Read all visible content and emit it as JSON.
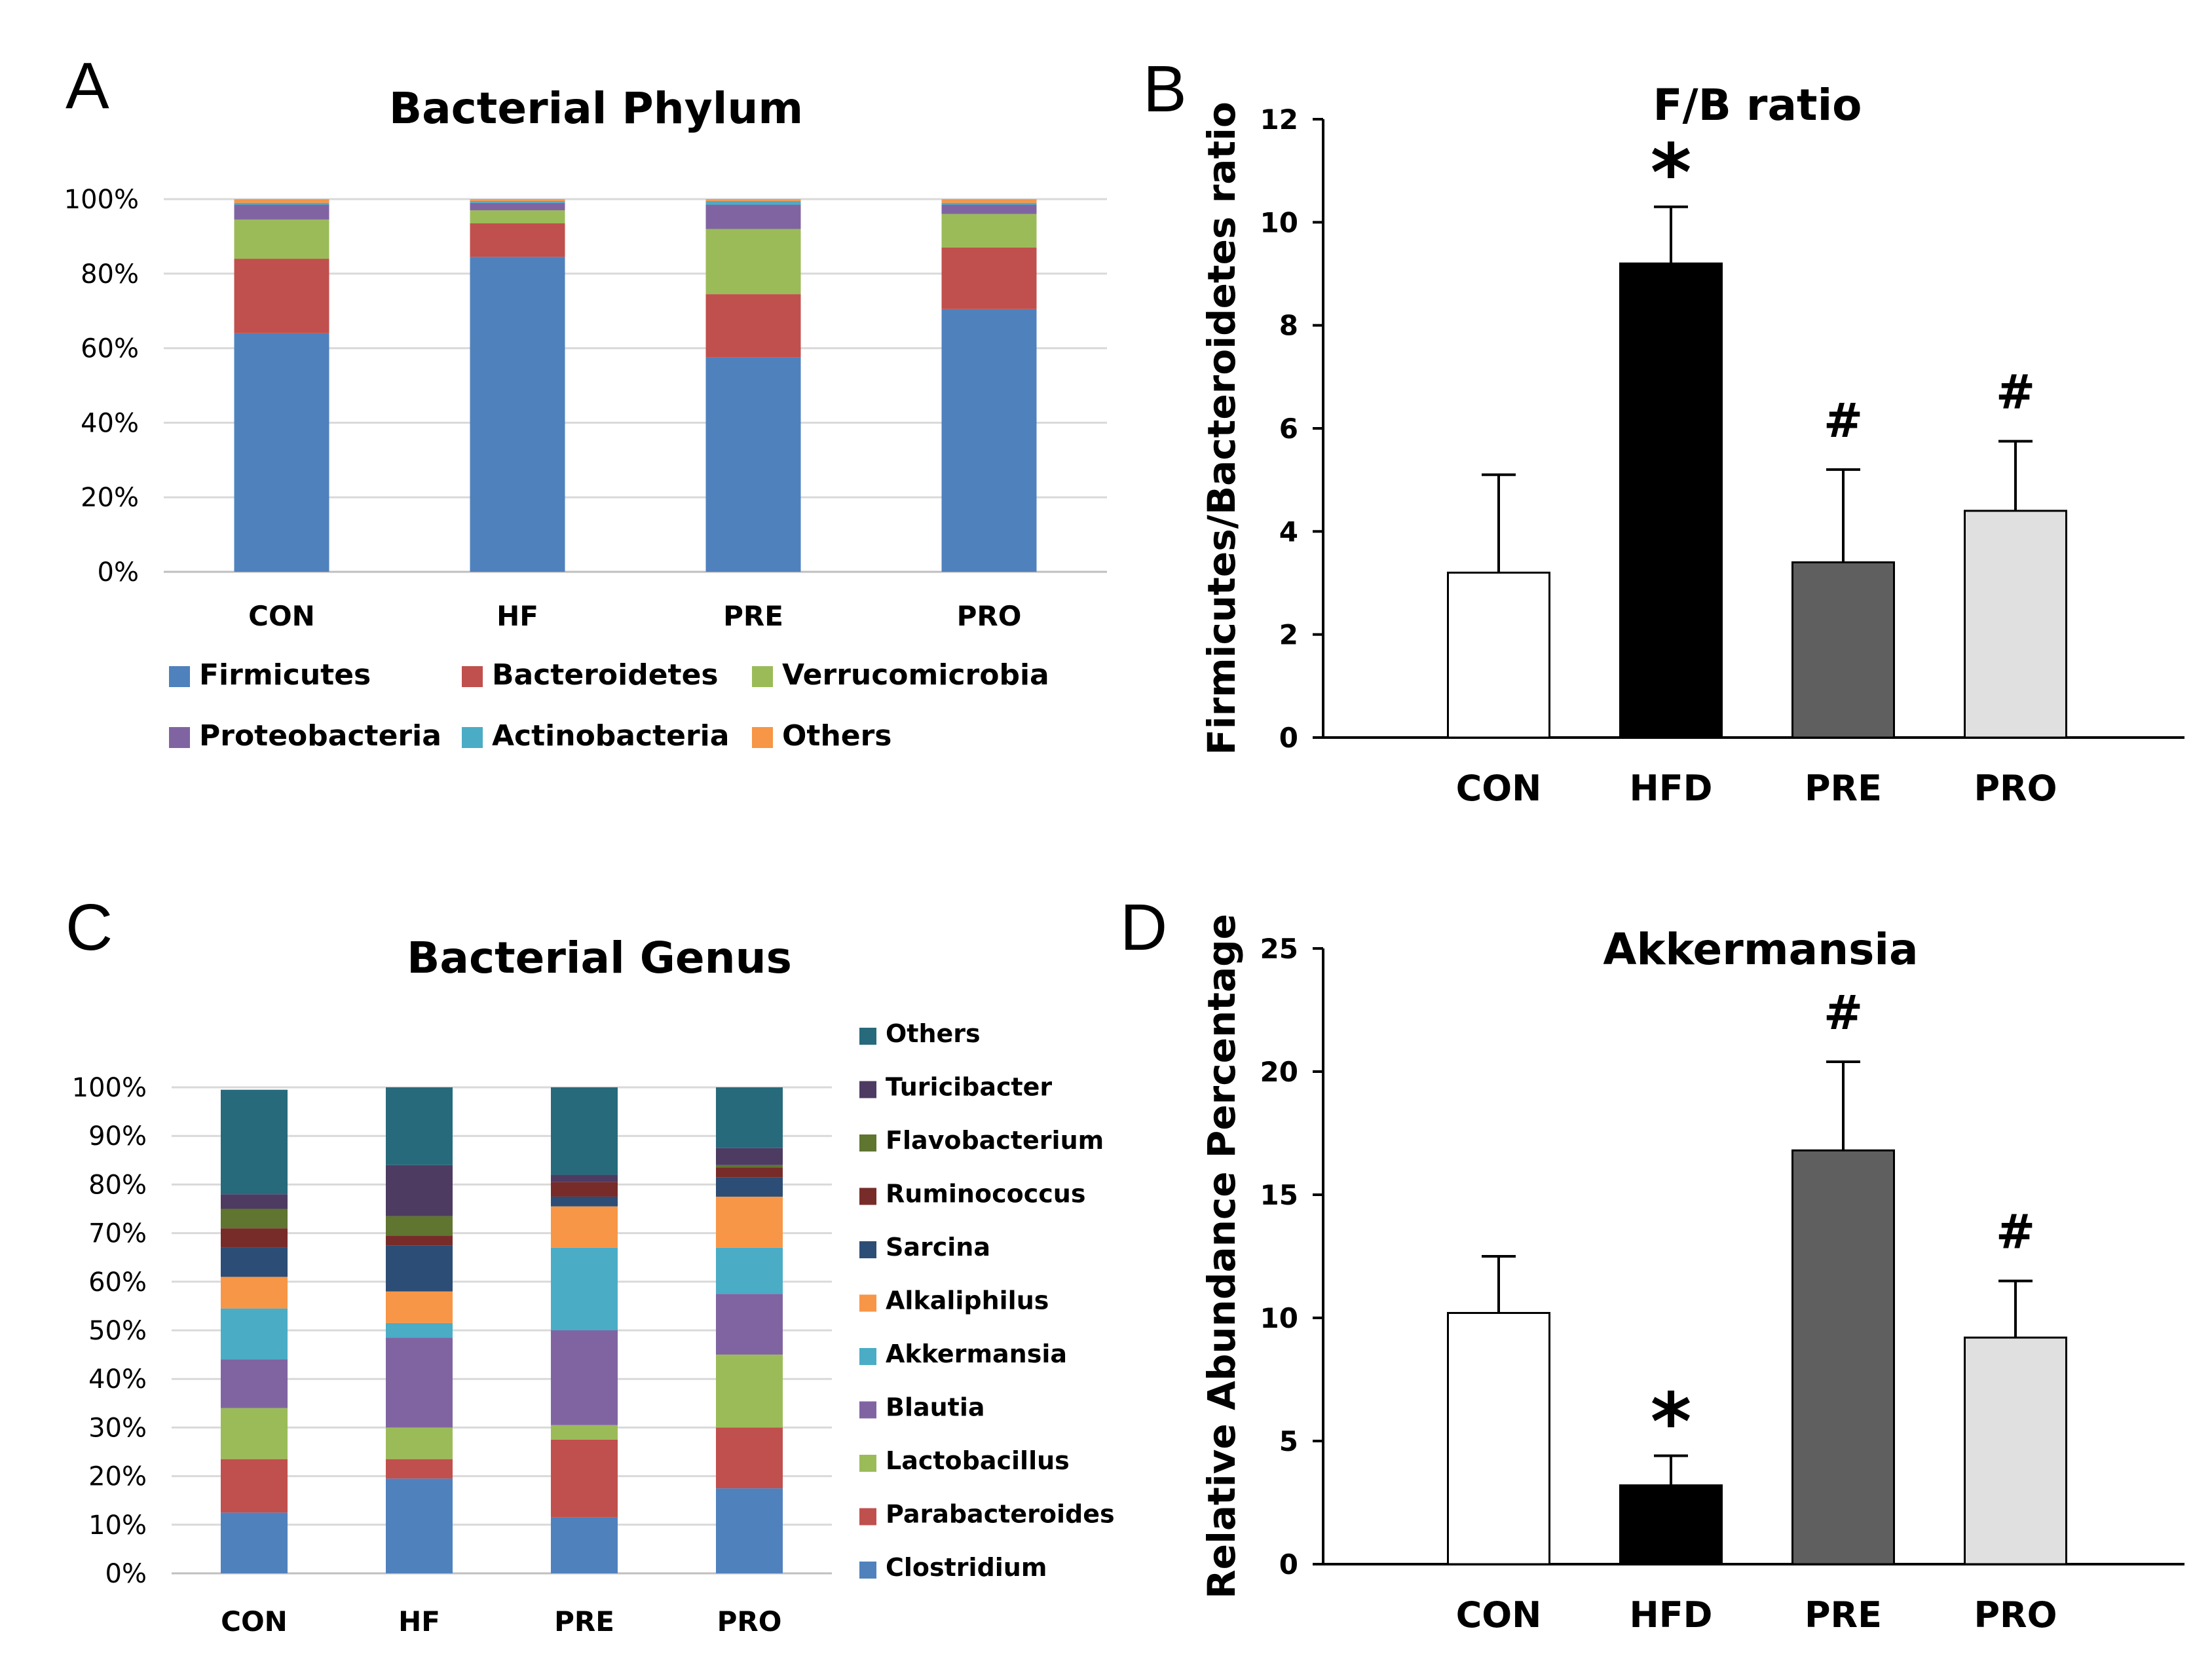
{
  "chart_data": [
    {
      "panel": "A",
      "type": "bar",
      "stacked": true,
      "title": "Bacterial Phylum",
      "categories": [
        "CON",
        "HF",
        "PRE",
        "PRO"
      ],
      "yticks": [
        "0%",
        "20%",
        "40%",
        "60%",
        "80%",
        "100%"
      ],
      "ylim": [
        0,
        100
      ],
      "series": [
        {
          "name": "Firmicutes",
          "color": "#4F81BD",
          "values": [
            64,
            84.5,
            57.5,
            70.5
          ]
        },
        {
          "name": "Bacteroidetes",
          "color": "#C0504D",
          "values": [
            20,
            9,
            17,
            16.5
          ]
        },
        {
          "name": "Verrucomicrobia",
          "color": "#9BBB59",
          "values": [
            10.5,
            3.5,
            17.5,
            9
          ]
        },
        {
          "name": "Proteobacteria",
          "color": "#8064A2",
          "values": [
            4,
            2,
            6.5,
            2.5
          ]
        },
        {
          "name": "Actinobacteria",
          "color": "#4BACC6",
          "values": [
            0.5,
            0.5,
            1,
            0.5
          ]
        },
        {
          "name": "Others",
          "color": "#F79646",
          "values": [
            1,
            0.5,
            0.5,
            1
          ]
        }
      ],
      "legend": "bottom"
    },
    {
      "panel": "B",
      "type": "bar",
      "title": "F/B ratio",
      "ylabel": "Firmicutes/Bacteroidetes ratio",
      "categories": [
        "CON",
        "HFD",
        "PRE",
        "PRO"
      ],
      "values": [
        3.2,
        9.2,
        3.4,
        4.4
      ],
      "errors": [
        1.9,
        1.1,
        1.8,
        1.35
      ],
      "colors": [
        "#FFFFFF",
        "#000000",
        "#5F5F5F",
        "#E0E0E0"
      ],
      "annotations": [
        "",
        "*",
        "#",
        "#"
      ],
      "yticks": [
        "0",
        "2",
        "4",
        "6",
        "8",
        "10",
        "12"
      ],
      "ylim": [
        0,
        12
      ]
    },
    {
      "panel": "C",
      "type": "bar",
      "stacked": true,
      "title": "Bacterial Genus",
      "categories": [
        "CON",
        "HF",
        "PRE",
        "PRO"
      ],
      "yticks": [
        "0%",
        "10%",
        "20%",
        "30%",
        "40%",
        "50%",
        "60%",
        "70%",
        "80%",
        "90%",
        "100%"
      ],
      "ylim": [
        0,
        100
      ],
      "series": [
        {
          "name": "Clostridium",
          "color": "#4F81BD",
          "values": [
            12.5,
            19.5,
            11.5,
            17.5
          ]
        },
        {
          "name": "Parabacteroides",
          "color": "#C0504D",
          "values": [
            11,
            4,
            16,
            12.5
          ]
        },
        {
          "name": "Lactobacillus",
          "color": "#9BBB59",
          "values": [
            10.5,
            6.5,
            3,
            15
          ]
        },
        {
          "name": "Blautia",
          "color": "#8064A2",
          "values": [
            10,
            18.5,
            19.5,
            12.5
          ]
        },
        {
          "name": "Akkermansia",
          "color": "#4BACC6",
          "values": [
            10.5,
            3,
            17,
            9.5
          ]
        },
        {
          "name": "Alkaliphilus",
          "color": "#F79646",
          "values": [
            6.5,
            6.5,
            8.5,
            10.5
          ]
        },
        {
          "name": "Sarcina",
          "color": "#2C4D75",
          "values": [
            6,
            9.5,
            2,
            4
          ]
        },
        {
          "name": "Ruminococcus",
          "color": "#772C2A",
          "values": [
            4,
            2,
            3,
            2
          ]
        },
        {
          "name": "Flavobacterium",
          "color": "#5F7530",
          "values": [
            4,
            4,
            0,
            0.5
          ]
        },
        {
          "name": "Turicibacter",
          "color": "#4D3B62",
          "values": [
            3,
            10.5,
            1.5,
            3.5
          ]
        },
        {
          "name": "Others",
          "color": "#276A7C",
          "values": [
            21.5,
            16,
            18,
            12.5
          ]
        }
      ],
      "legend": "right"
    },
    {
      "panel": "D",
      "type": "bar",
      "title": "Akkermansia",
      "ylabel": "Relative Abundance Percentage",
      "categories": [
        "CON",
        "HFD",
        "PRE",
        "PRO"
      ],
      "values": [
        10.2,
        3.2,
        16.8,
        9.2
      ],
      "errors": [
        2.3,
        1.2,
        3.6,
        2.3
      ],
      "colors": [
        "#FFFFFF",
        "#000000",
        "#5F5F5F",
        "#E0E0E0"
      ],
      "annotations": [
        "",
        "*",
        "#",
        "#"
      ],
      "yticks": [
        "0",
        "5",
        "10",
        "15",
        "20",
        "25"
      ],
      "ylim": [
        0,
        25
      ]
    }
  ],
  "panel_letters": [
    "A",
    "B",
    "C",
    "D"
  ]
}
